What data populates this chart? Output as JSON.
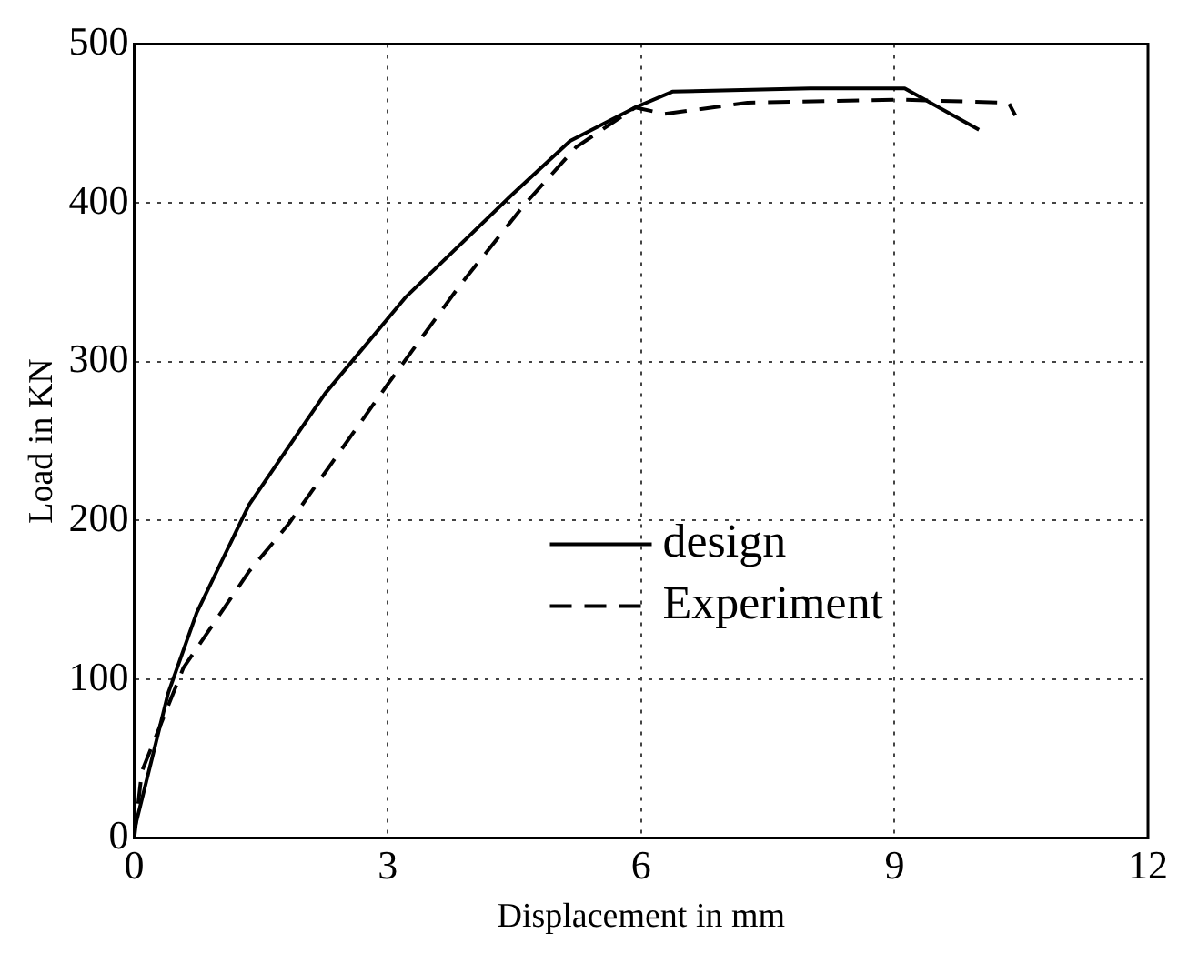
{
  "chart_data": {
    "type": "line",
    "xlabel": "Displacement in mm",
    "ylabel": "Load in KN",
    "xlim": [
      0,
      12
    ],
    "xticks": [
      0,
      3,
      6,
      9,
      12
    ],
    "ylim": [
      0,
      500
    ],
    "yticks": [
      0,
      100,
      200,
      300,
      400,
      500
    ],
    "grid": true,
    "legend": "right",
    "marker": "none",
    "series": [
      {
        "name": "design",
        "color": "#000000",
        "line_style": "solid",
        "x": [
          0,
          0.4,
          0.74,
          1.36,
          2.26,
          3.22,
          4.47,
          5.16,
          5.93,
          6.37,
          8.0,
          9.12,
          10.0
        ],
        "values": [
          5,
          91,
          142,
          210,
          280,
          341,
          405,
          439,
          460,
          470,
          472,
          472,
          446
        ]
      },
      {
        "name": "Experiment",
        "color": "#000000",
        "line_style": "dashed",
        "x": [
          0,
          0.09,
          0.58,
          1.36,
          1.83,
          2.99,
          3.84,
          4.62,
          5.23,
          5.93,
          6.28,
          7.26,
          9.04,
          10.35,
          10.43
        ],
        "values": [
          0,
          42,
          107,
          168,
          198,
          285,
          347,
          399,
          435,
          460,
          456,
          463,
          465,
          463,
          455
        ]
      }
    ]
  }
}
